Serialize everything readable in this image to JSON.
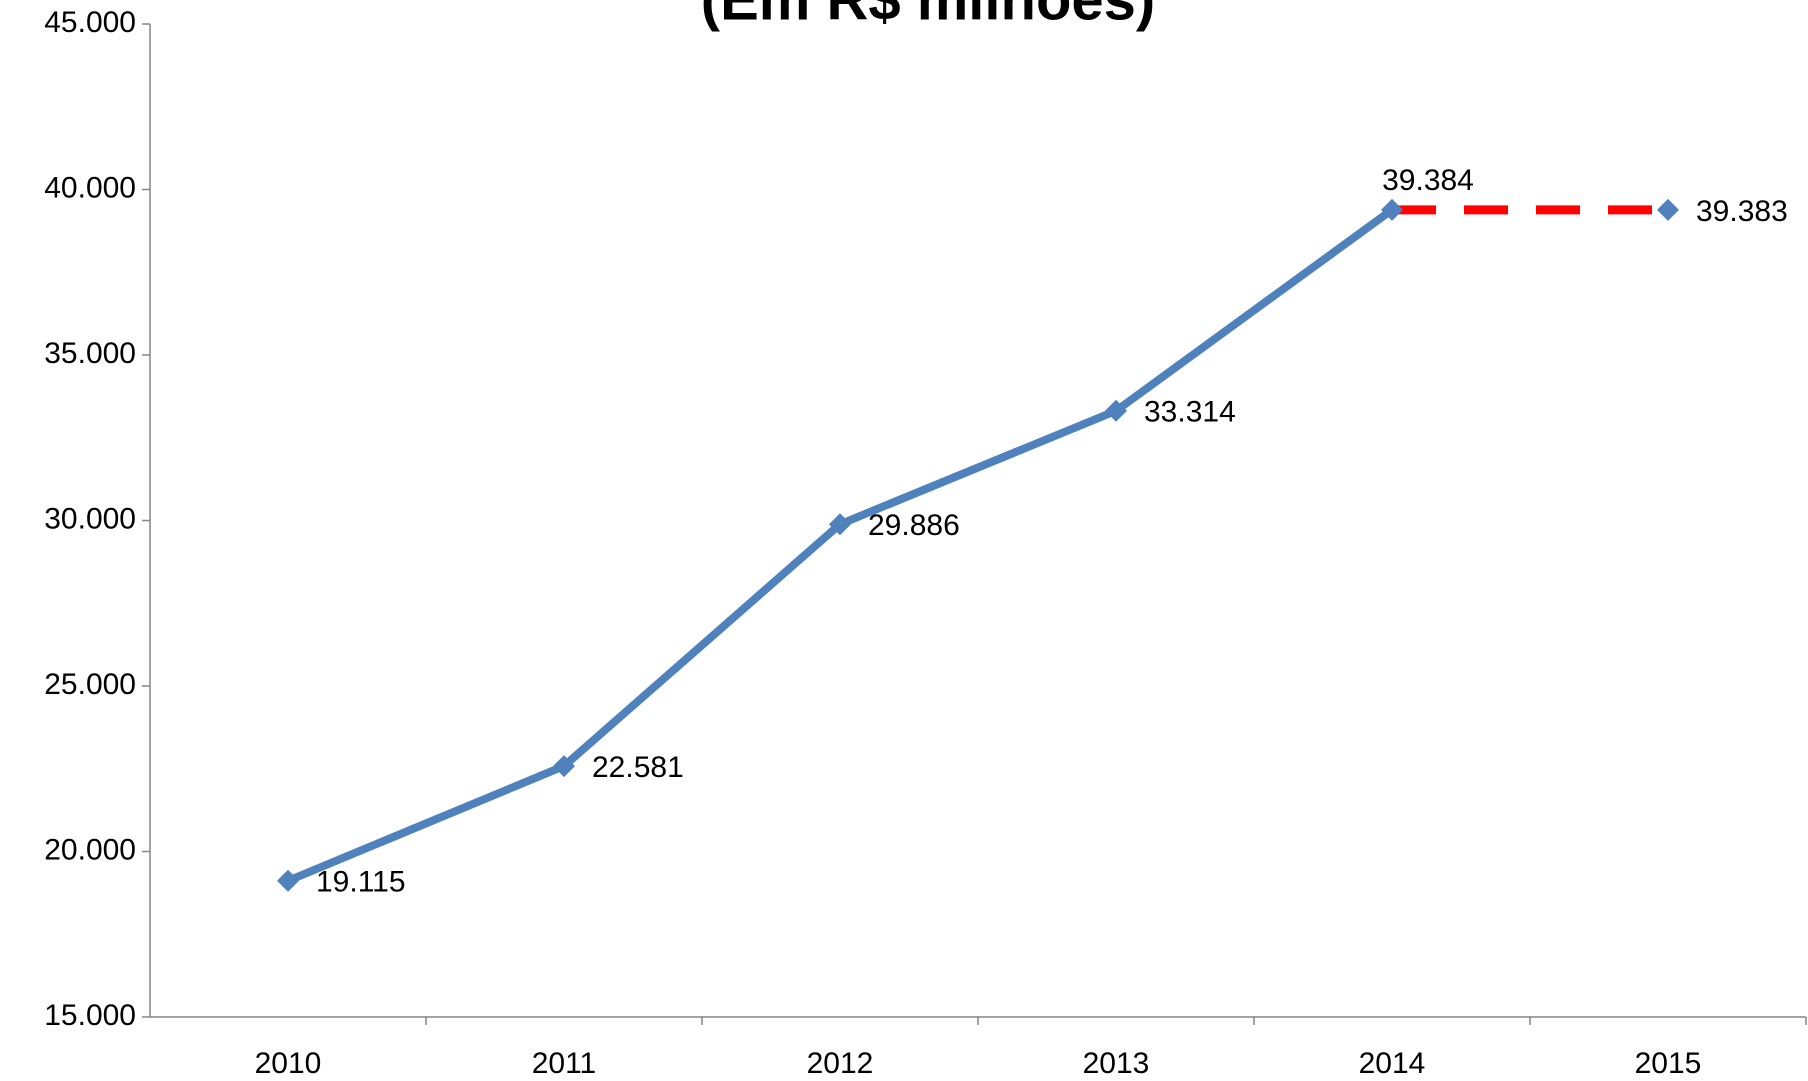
{
  "chart_data": {
    "type": "line",
    "title": "(Em R$ milhões)",
    "categories": [
      "2010",
      "2011",
      "2012",
      "2013",
      "2014",
      "2015"
    ],
    "series": [
      {
        "color": "#4f81bd",
        "values": [
          19115,
          22581,
          29886,
          33314,
          39384,
          39383
        ],
        "value_labels": [
          "19.115",
          "22.581",
          "29.886",
          "33.314",
          "39.384",
          "39.383"
        ],
        "last_segment_style": "dashed",
        "last_segment_color": "#ff0000"
      }
    ],
    "ylim": [
      15000,
      45000
    ],
    "yticks": [
      {
        "value": 15000,
        "label": "15.000"
      },
      {
        "value": 20000,
        "label": "20.000"
      },
      {
        "value": 25000,
        "label": "25.000"
      },
      {
        "value": 30000,
        "label": "30.000"
      },
      {
        "value": 35000,
        "label": "35.000"
      },
      {
        "value": 40000,
        "label": "40.000"
      },
      {
        "value": 45000,
        "label": "45.000"
      }
    ],
    "grid": false
  }
}
